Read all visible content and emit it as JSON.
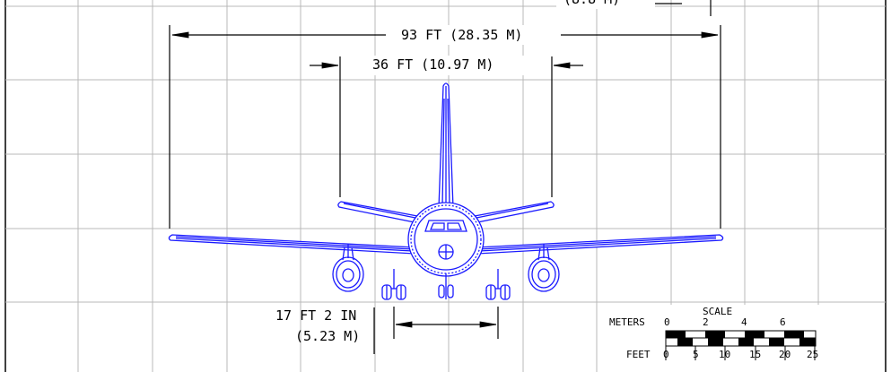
{
  "dimensions": {
    "wingspan": "93 FT (28.35 M)",
    "tailspan": "36 FT (10.97 M)",
    "track_line1": "17 FT 2 IN",
    "track_line2": "(5.23 M)",
    "top_partial": "(8.8 M)"
  },
  "scale": {
    "title": "SCALE",
    "meters_label": "METERS",
    "meters_ticks": [
      "0",
      "2",
      "4",
      "6"
    ],
    "feet_label": "FEET",
    "feet_ticks": [
      "0",
      "5",
      "10",
      "15",
      "20",
      "25"
    ]
  },
  "colors": {
    "drawing": "#1a1aff",
    "grid": "#b9b9b9",
    "dimension": "#000000"
  }
}
